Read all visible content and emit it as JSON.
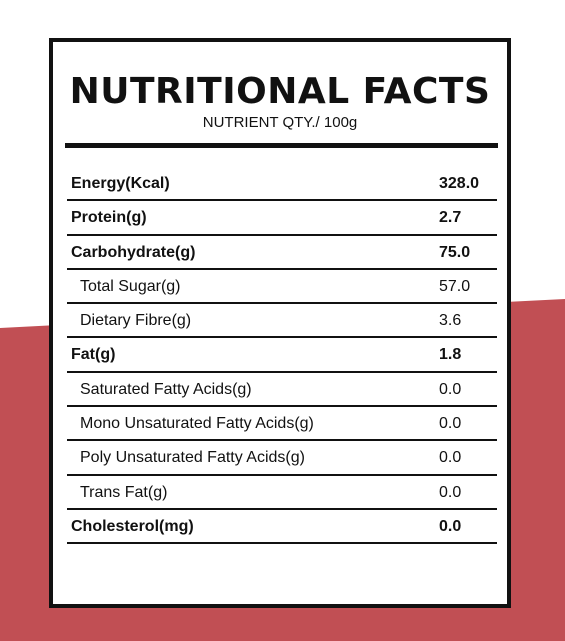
{
  "colors": {
    "background_band": "#c14f54",
    "card_border": "#111111",
    "card_fill": "#ffffff"
  },
  "label": {
    "title": "NUTRITIONAL FACTS",
    "subtitle": "NUTRIENT QTY./ 100g",
    "rows": [
      {
        "name": "Energy(Kcal)",
        "qty": "328.0",
        "bold": true
      },
      {
        "name": "Protein(g)",
        "qty": "2.7",
        "bold": true
      },
      {
        "name": "Carbohydrate(g)",
        "qty": "75.0",
        "bold": true
      },
      {
        "name": "Total Sugar(g)",
        "qty": "57.0",
        "bold": false
      },
      {
        "name": "Dietary Fibre(g)",
        "qty": "3.6",
        "bold": false
      },
      {
        "name": "Fat(g)",
        "qty": "1.8",
        "bold": true
      },
      {
        "name": "Saturated Fatty Acids(g)",
        "qty": "0.0",
        "bold": false
      },
      {
        "name": "Mono Unsaturated Fatty Acids(g)",
        "qty": "0.0",
        "bold": false
      },
      {
        "name": "Poly Unsaturated Fatty Acids(g)",
        "qty": "0.0",
        "bold": false
      },
      {
        "name": "Trans Fat(g)",
        "qty": "0.0",
        "bold": false
      },
      {
        "name": "Cholesterol(mg)",
        "qty": "0.0",
        "bold": true
      }
    ]
  }
}
